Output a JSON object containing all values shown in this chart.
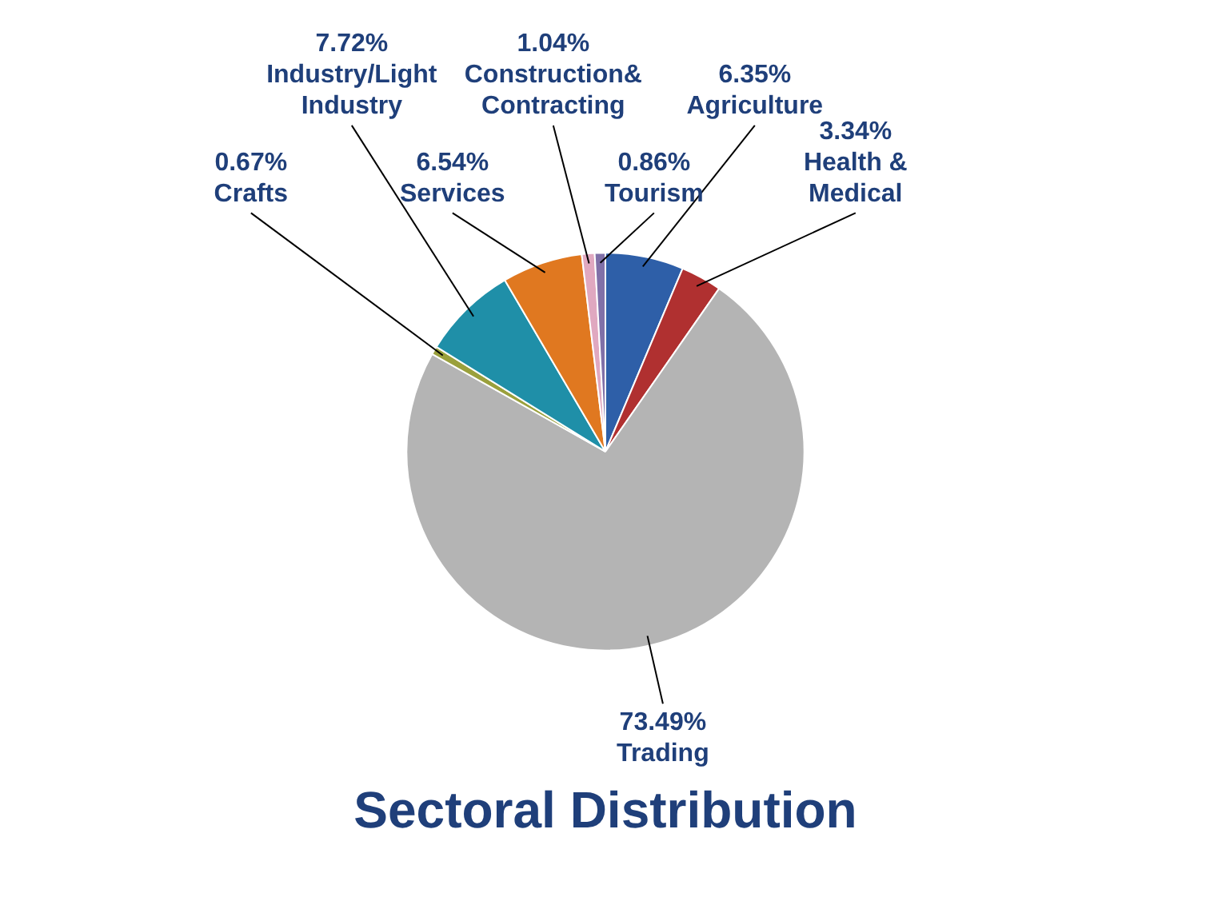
{
  "chart_data": {
    "type": "pie",
    "title": "Sectoral Distribution",
    "categories": [
      "Agriculture",
      "Health & Medical",
      "Trading",
      "Crafts",
      "Industry/Light Industry",
      "Services",
      "Construction& Contracting",
      "Tourism"
    ],
    "values": [
      6.35,
      3.34,
      73.49,
      0.67,
      7.72,
      6.54,
      1.04,
      0.86
    ],
    "colors": [
      "#2e5fa8",
      "#b03030",
      "#b4b4b4",
      "#9aa03c",
      "#1f8fa8",
      "#e07820",
      "#e0a8c0",
      "#8070a8"
    ],
    "value_labels": [
      "6.35%",
      "3.34%",
      "73.49%",
      "0.67%",
      "7.72%",
      "6.54%",
      "1.04%",
      "0.86%"
    ]
  }
}
